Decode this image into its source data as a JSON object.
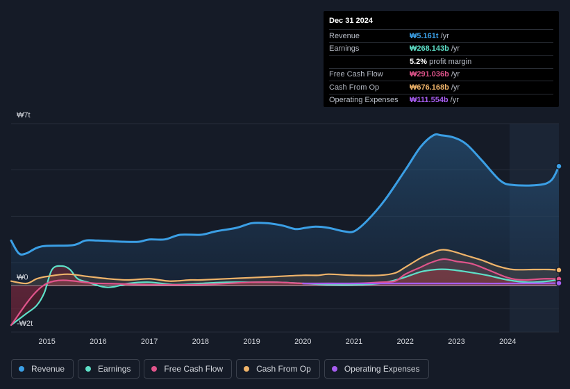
{
  "tooltip": {
    "date": "Dec 31 2024",
    "rows": [
      {
        "label": "Revenue",
        "value": "₩5.161t",
        "unit": "/yr",
        "color": "#3b9fe5"
      },
      {
        "label": "Earnings",
        "value": "₩268.143b",
        "unit": "/yr",
        "color": "#5ee0c8"
      },
      {
        "label": "",
        "value": "5.2%",
        "unit": "profit margin",
        "color": "#ffffff"
      },
      {
        "label": "Free Cash Flow",
        "value": "₩291.036b",
        "unit": "/yr",
        "color": "#e0548b"
      },
      {
        "label": "Cash From Op",
        "value": "₩676.168b",
        "unit": "/yr",
        "color": "#f0b46a"
      },
      {
        "label": "Operating Expenses",
        "value": "₩111.554b",
        "unit": "/yr",
        "color": "#a75df0"
      }
    ]
  },
  "legend": [
    {
      "label": "Revenue",
      "color": "#3b9fe5"
    },
    {
      "label": "Earnings",
      "color": "#5ee0c8"
    },
    {
      "label": "Free Cash Flow",
      "color": "#e0548b"
    },
    {
      "label": "Cash From Op",
      "color": "#f0b46a"
    },
    {
      "label": "Operating Expenses",
      "color": "#a75df0"
    }
  ],
  "chart_data": {
    "type": "area",
    "title": "",
    "y_tick_labels": [
      "₩7t",
      "₩0",
      "-₩2t"
    ],
    "ylim": [
      -2,
      7
    ],
    "xlim": [
      2014.3,
      2025.0
    ],
    "x_ticks": [
      2015,
      2016,
      2017,
      2018,
      2019,
      2020,
      2021,
      2022,
      2023,
      2024
    ],
    "x_tick_labels": [
      "2015",
      "2016",
      "2017",
      "2018",
      "2019",
      "2020",
      "2021",
      "2022",
      "2023",
      "2024"
    ],
    "forecast_start": 2024.0,
    "series": [
      {
        "name": "Revenue",
        "color": "#3b9fe5",
        "x": [
          2014.3,
          2014.45,
          2014.6,
          2014.9,
          2015.5,
          2015.75,
          2016.0,
          2016.5,
          2016.8,
          2017.0,
          2017.3,
          2017.6,
          2018.0,
          2018.3,
          2018.7,
          2019.0,
          2019.3,
          2019.6,
          2019.85,
          2020.05,
          2020.25,
          2020.5,
          2020.8,
          2021.0,
          2021.25,
          2021.6,
          2022.0,
          2022.3,
          2022.55,
          2022.7,
          2022.95,
          2023.2,
          2023.5,
          2023.85,
          2024.1,
          2024.6,
          2024.85,
          2025.0
        ],
        "values": [
          1.95,
          1.4,
          1.4,
          1.7,
          1.75,
          1.95,
          1.95,
          1.9,
          1.9,
          2.0,
          2.0,
          2.2,
          2.2,
          2.35,
          2.5,
          2.7,
          2.7,
          2.6,
          2.45,
          2.5,
          2.55,
          2.5,
          2.35,
          2.35,
          2.8,
          3.7,
          5.0,
          6.0,
          6.5,
          6.5,
          6.4,
          6.1,
          5.4,
          4.55,
          4.35,
          4.35,
          4.55,
          5.161
        ]
      },
      {
        "name": "Earnings",
        "color": "#5ee0c8",
        "x": [
          2014.3,
          2014.6,
          2014.8,
          2014.95,
          2015.1,
          2015.3,
          2015.45,
          2015.6,
          2015.8,
          2016.1,
          2016.3,
          2016.6,
          2017.0,
          2017.5,
          2018.0,
          2018.5,
          2019.0,
          2019.5,
          2020.0,
          2020.5,
          2021.0,
          2021.5,
          2021.9,
          2022.3,
          2022.6,
          2022.85,
          2023.2,
          2023.6,
          2024.0,
          2024.4,
          2024.8,
          2025.0
        ],
        "values": [
          -1.7,
          -1.2,
          -0.85,
          -0.3,
          0.7,
          0.85,
          0.7,
          0.3,
          0.15,
          -0.05,
          -0.05,
          0.1,
          0.15,
          0.05,
          0.1,
          0.15,
          0.15,
          0.15,
          0.1,
          0.05,
          0.05,
          0.1,
          0.3,
          0.6,
          0.7,
          0.7,
          0.6,
          0.45,
          0.25,
          0.15,
          0.2,
          0.268
        ]
      },
      {
        "name": "Free Cash Flow",
        "color": "#e0548b",
        "x": [
          2014.3,
          2015.0,
          2016.0,
          2017.0,
          2018.0,
          2019.0,
          2019.5,
          2020.0,
          2020.5,
          2021.0,
          2021.5,
          2021.8,
          2022.0,
          2022.3,
          2022.5,
          2022.75,
          2023.0,
          2023.3,
          2023.6,
          2024.0,
          2024.3,
          2024.7,
          2025.0
        ],
        "values": [
          -1.7,
          0.1,
          0.1,
          0.05,
          0.05,
          0.15,
          0.15,
          0.1,
          0.1,
          0.1,
          0.15,
          0.2,
          0.5,
          0.8,
          1.0,
          1.15,
          1.05,
          0.95,
          0.7,
          0.35,
          0.25,
          0.3,
          0.291
        ]
      },
      {
        "name": "Cash From Op",
        "color": "#f0b46a",
        "x": [
          2014.3,
          2014.6,
          2014.8,
          2015.0,
          2015.4,
          2015.8,
          2016.2,
          2016.6,
          2017.0,
          2017.4,
          2017.8,
          2018.0,
          2018.5,
          2019.0,
          2019.5,
          2020.0,
          2020.3,
          2020.5,
          2021.0,
          2021.5,
          2021.8,
          2022.0,
          2022.3,
          2022.5,
          2022.7,
          2022.9,
          2023.2,
          2023.5,
          2023.8,
          2024.1,
          2024.5,
          2024.8,
          2025.0
        ],
        "values": [
          0.2,
          0.1,
          0.3,
          0.4,
          0.5,
          0.4,
          0.3,
          0.25,
          0.3,
          0.2,
          0.25,
          0.25,
          0.3,
          0.35,
          0.4,
          0.45,
          0.45,
          0.5,
          0.45,
          0.45,
          0.55,
          0.8,
          1.2,
          1.4,
          1.55,
          1.5,
          1.3,
          1.1,
          0.85,
          0.7,
          0.7,
          0.7,
          0.676
        ]
      },
      {
        "name": "Operating Expenses",
        "color": "#a75df0",
        "x": [
          2020.0,
          2021.0,
          2022.0,
          2023.0,
          2024.0,
          2025.0
        ],
        "values": [
          0.1,
          0.1,
          0.1,
          0.1,
          0.1,
          0.112
        ]
      }
    ]
  }
}
